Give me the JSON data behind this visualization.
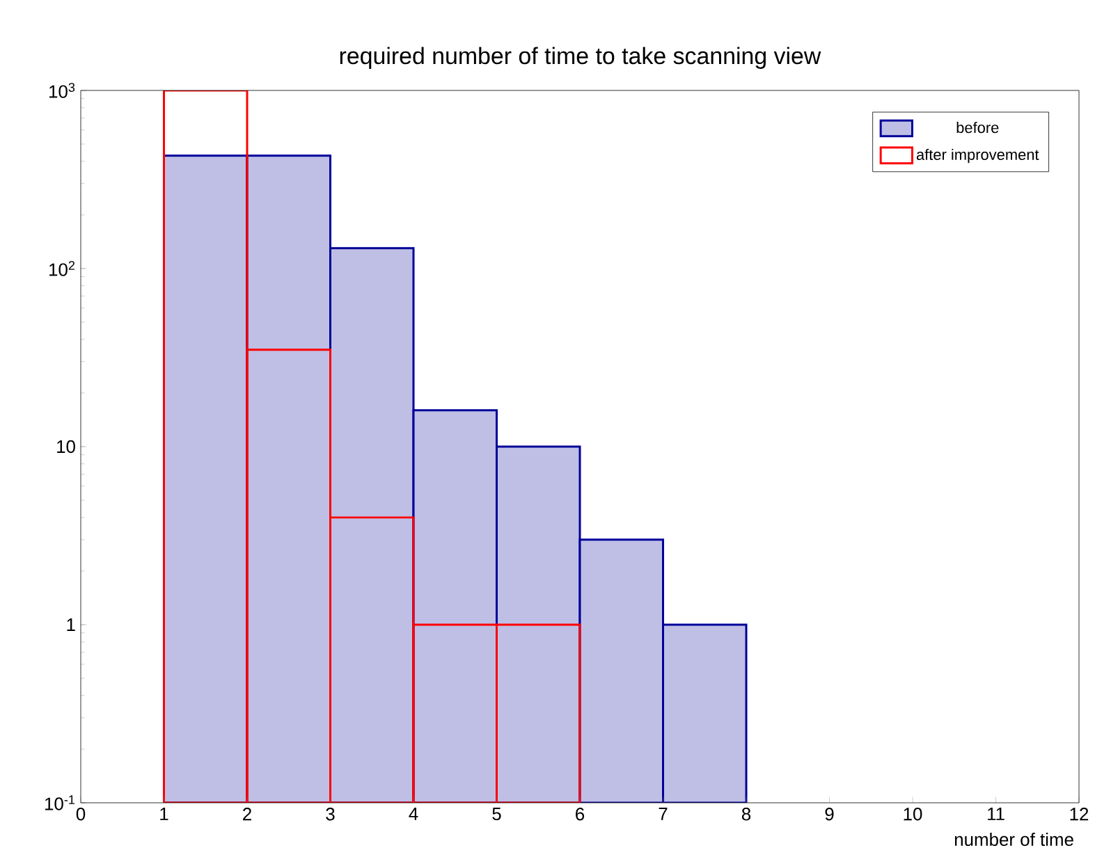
{
  "chart_data": {
    "type": "histogram",
    "title": "required number of time to take scanning view",
    "xlabel": "number of time",
    "bins": [
      0,
      1,
      2,
      3,
      4,
      5,
      6,
      7,
      8,
      9,
      10,
      11,
      12
    ],
    "series": [
      {
        "name": "before",
        "color": "#000099",
        "values": [
          null,
          430,
          430,
          130,
          16,
          10,
          3,
          1,
          null,
          null,
          null,
          null
        ]
      },
      {
        "name": "after improvement",
        "color": "#ff0000",
        "values": [
          null,
          1000,
          35,
          4,
          1,
          1,
          null,
          null,
          null,
          null,
          null,
          null
        ]
      }
    ],
    "log": "y",
    "xlim": [
      0,
      12
    ],
    "ylim": [
      0.1,
      1000
    ],
    "xticks": [
      0,
      1,
      2,
      3,
      4,
      5,
      6,
      7,
      8,
      9,
      10,
      11,
      12
    ],
    "yticks": [
      {
        "value": 0.1,
        "label": "10$^{-1}$"
      },
      1,
      10,
      {
        "value": 100,
        "label": "10$^{2}$"
      },
      {
        "value": 1000,
        "label": "10$^{3}$"
      }
    ],
    "legend": "top right",
    "grid": false
  }
}
